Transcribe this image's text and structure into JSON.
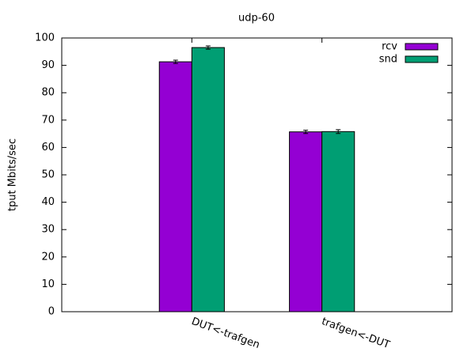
{
  "chart_data": {
    "type": "bar",
    "title": "udp-60",
    "y_label": "tput Mbits/sec",
    "categories": [
      "DUT<-trafgen",
      "trafgen<-DUT"
    ],
    "series": [
      {
        "name": "rcv",
        "color": "#9400d3",
        "values": [
          91.3,
          65.7
        ],
        "errors": [
          0.6,
          0.6
        ]
      },
      {
        "name": "snd",
        "color": "#009e73",
        "values": [
          96.5,
          65.8
        ],
        "errors": [
          0.6,
          0.7
        ]
      }
    ],
    "ylim": [
      0,
      100
    ],
    "yticks": [
      0,
      10,
      20,
      30,
      40,
      50,
      60,
      70,
      80,
      90,
      100
    ],
    "legend": "top-right"
  }
}
